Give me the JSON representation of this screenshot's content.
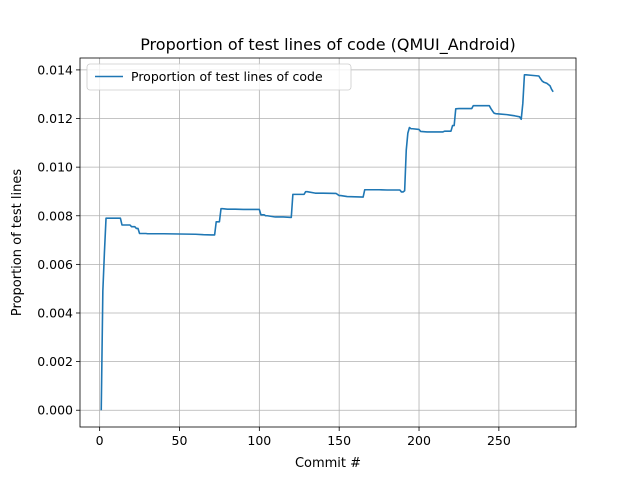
{
  "chart_data": {
    "type": "line",
    "title": "Proportion of test lines of code (QMUI_Android)",
    "xlabel": "Commit #",
    "ylabel": "Proportion of test lines",
    "xlim": [
      -12.3,
      298.3
    ],
    "ylim": [
      -0.00069,
      0.01449
    ],
    "xticks": [
      0,
      50,
      100,
      150,
      200,
      250
    ],
    "yticks": [
      0.0,
      0.002,
      0.004,
      0.006,
      0.008,
      0.01,
      0.012,
      0.014
    ],
    "ytick_labels": [
      "0.000",
      "0.002",
      "0.004",
      "0.006",
      "0.008",
      "0.010",
      "0.012",
      "0.014"
    ],
    "grid": true,
    "legend": {
      "placement": "upper-left"
    },
    "color": "#1f77b4",
    "series": [
      {
        "name": "Proportion of test lines of code",
        "x": [
          1,
          2,
          3,
          4,
          5,
          6,
          7,
          8,
          9,
          10,
          11,
          12,
          13,
          14,
          15,
          16,
          17,
          18,
          19,
          20,
          21,
          22,
          23,
          24,
          25,
          26,
          27,
          28,
          29,
          30,
          40,
          50,
          60,
          65,
          70,
          71,
          72,
          73,
          74,
          75,
          76,
          77,
          80,
          85,
          90,
          95,
          100,
          101,
          102,
          103,
          104,
          105,
          110,
          115,
          120,
          121,
          122,
          123,
          125,
          128,
          129,
          130,
          135,
          136,
          140,
          148,
          150,
          151,
          155,
          160,
          165,
          166,
          167,
          170,
          175,
          180,
          185,
          188,
          189,
          190,
          191,
          192,
          193,
          194,
          195,
          196,
          200,
          201,
          205,
          210,
          215,
          216,
          220,
          221,
          222,
          223,
          225,
          230,
          233,
          234,
          240,
          244,
          245,
          246,
          247,
          248,
          250,
          255,
          260,
          263,
          264,
          265,
          266,
          267,
          270,
          275,
          276,
          277,
          278,
          280,
          281,
          282,
          283,
          284
        ],
        "y": [
          0.0,
          0.0049,
          0.0065,
          0.0079,
          0.0079,
          0.0079,
          0.0079,
          0.0079,
          0.0079,
          0.0079,
          0.0079,
          0.0079,
          0.0079,
          0.00762,
          0.00762,
          0.00762,
          0.00762,
          0.00762,
          0.00762,
          0.00755,
          0.00755,
          0.00755,
          0.00748,
          0.00748,
          0.00727,
          0.00727,
          0.00727,
          0.00727,
          0.00727,
          0.00726,
          0.00726,
          0.00725,
          0.00724,
          0.00722,
          0.00721,
          0.00721,
          0.00721,
          0.00775,
          0.00775,
          0.00775,
          0.00829,
          0.00829,
          0.00827,
          0.00827,
          0.00826,
          0.00826,
          0.00826,
          0.00804,
          0.00804,
          0.00804,
          0.008,
          0.008,
          0.00795,
          0.00795,
          0.00793,
          0.00888,
          0.00888,
          0.00888,
          0.00888,
          0.00888,
          0.00899,
          0.00899,
          0.00893,
          0.00893,
          0.00893,
          0.00892,
          0.00883,
          0.00883,
          0.00879,
          0.00878,
          0.00877,
          0.00907,
          0.00907,
          0.00907,
          0.00907,
          0.00906,
          0.00906,
          0.00906,
          0.00898,
          0.00898,
          0.00903,
          0.0107,
          0.0114,
          0.01163,
          0.01158,
          0.01158,
          0.01155,
          0.01147,
          0.01145,
          0.01145,
          0.01145,
          0.01148,
          0.01148,
          0.01171,
          0.01171,
          0.0124,
          0.01241,
          0.01241,
          0.01241,
          0.01253,
          0.01253,
          0.01253,
          0.01241,
          0.01231,
          0.01222,
          0.0122,
          0.01219,
          0.01216,
          0.01211,
          0.01207,
          0.01197,
          0.01262,
          0.0138,
          0.0138,
          0.01378,
          0.01375,
          0.01365,
          0.01355,
          0.0135,
          0.01345,
          0.0134,
          0.01335,
          0.0132,
          0.0131
        ]
      }
    ]
  }
}
